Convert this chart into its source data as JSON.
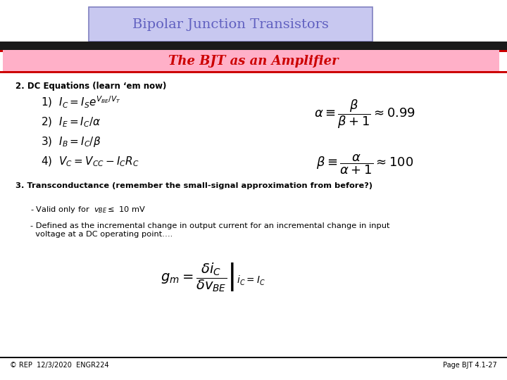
{
  "title1": "Bipolar Junction Transistors",
  "title2": "The BJT as an Amplifier",
  "title1_bg": "#c8c8f0",
  "title2_bg": "#ffb0c8",
  "title1_color": "#6060c0",
  "title2_color": "#cc0000",
  "bg_color": "#ffffff",
  "header_bar_color": "#1a1a1a",
  "header_bar2_color": "#cc0000",
  "section2_label": "2. DC Equations (learn ‘em now)",
  "section3_label": "3. Transconductance (remember the small-signal approximation from before?)",
  "bullet1": "- Valid only for  $v_{BE}\\leq$ 10 mV",
  "bullet2": "- Defined as the incremental change in output current for an incremental change in input\n  voltage at a DC operating point….",
  "footer_left": "© REP  12/3/2020  ENGR224",
  "footer_right": "Page BJT 4.1-27"
}
